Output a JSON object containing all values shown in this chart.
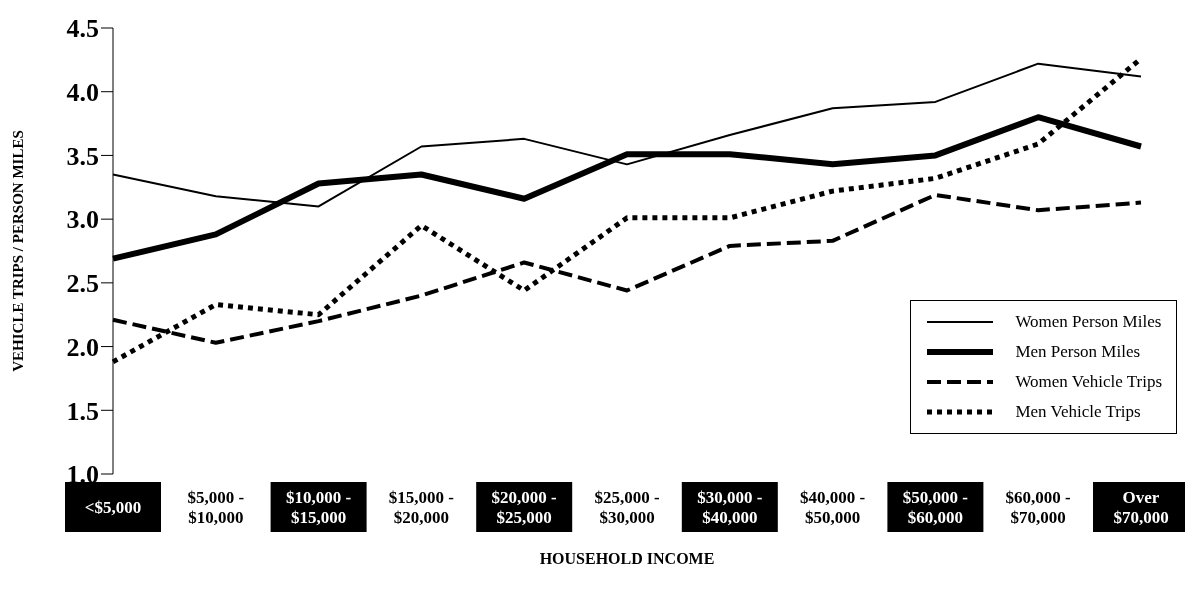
{
  "chart_data": {
    "type": "line",
    "xlabel": "HOUSEHOLD INCOME",
    "ylabel": "VEHICLE TRIPS / PERSON MILES",
    "categories": [
      "<$5,000",
      "$5,000 -\n$10,000",
      "$10,000 -\n$15,000",
      "$15,000 -\n$20,000",
      "$20,000 -\n$25,000",
      "$25,000 -\n$30,000",
      "$30,000 -\n$40,000",
      "$40,000 -\n$50,000",
      "$50,000 -\n$60,000",
      "$60,000 -\n$70,000",
      "Over\n$70,000"
    ],
    "series": [
      {
        "name": "Women Person Miles",
        "color": "#000000",
        "line_style": "solid",
        "values": [
          3.35,
          3.18,
          3.1,
          3.57,
          3.63,
          3.43,
          3.66,
          3.87,
          3.92,
          4.22,
          4.12
        ]
      },
      {
        "name": "Men Person Miles",
        "color": "#000000",
        "line_style": "solid",
        "values": [
          2.69,
          2.88,
          3.28,
          3.35,
          3.16,
          3.51,
          3.51,
          3.43,
          3.5,
          3.8,
          3.57
        ]
      },
      {
        "name": "Women Vehicle Trips",
        "color": "#000000",
        "line_style": "dashed",
        "values": [
          2.21,
          2.03,
          2.2,
          2.4,
          2.66,
          2.44,
          2.79,
          2.83,
          3.19,
          3.07,
          3.13
        ]
      },
      {
        "name": "Men Vehicle Trips",
        "color": "#000000",
        "line_style": "dotted",
        "values": [
          1.88,
          2.33,
          2.25,
          2.95,
          2.44,
          3.01,
          3.01,
          3.22,
          3.32,
          3.59,
          4.26
        ]
      }
    ],
    "ylim": [
      1.0,
      4.5
    ],
    "yticks": [
      {
        "value": 1.0,
        "label": "1.0"
      },
      {
        "value": 1.5,
        "label": "1.5"
      },
      {
        "value": 2.0,
        "label": "2.0"
      },
      {
        "value": 2.5,
        "label": "2.5"
      },
      {
        "value": 3.0,
        "label": "3.0"
      },
      {
        "value": 3.5,
        "label": "3.5"
      },
      {
        "value": 4.0,
        "label": "4.0"
      },
      {
        "value": 4.5,
        "label": "4.5"
      }
    ],
    "grid": false,
    "legend": "bottom right",
    "marker": "none"
  }
}
